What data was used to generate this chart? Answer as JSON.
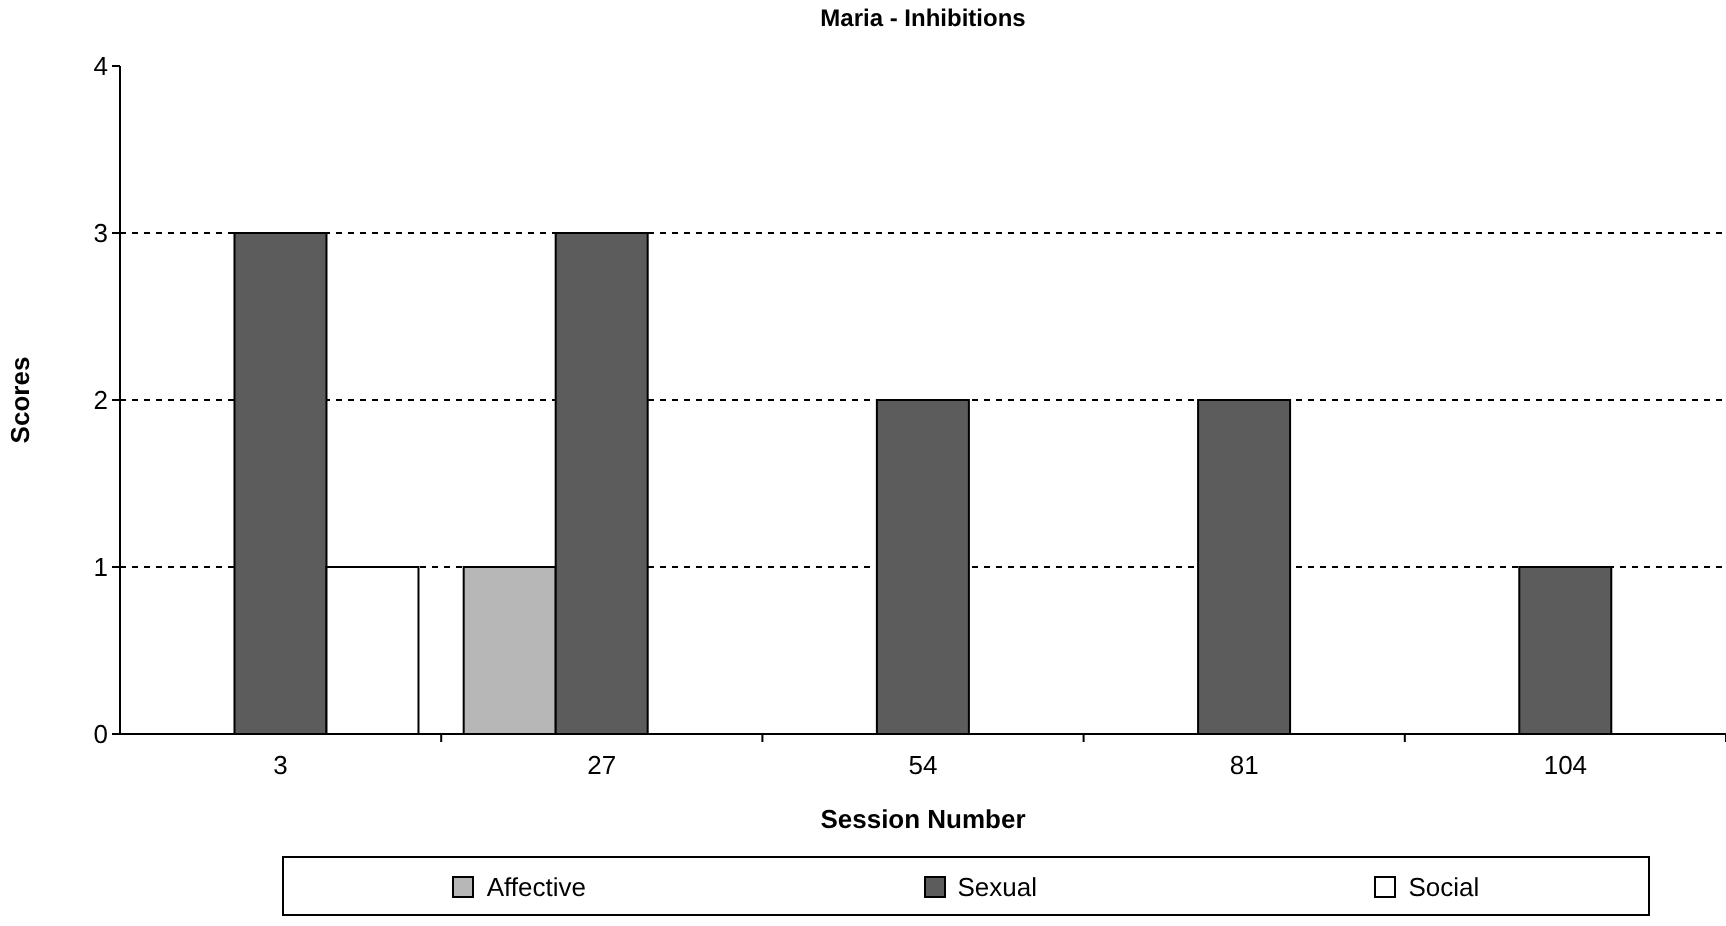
{
  "chart_data": {
    "type": "bar",
    "title": "Maria - Inhibitions",
    "xlabel": "Session Number",
    "ylabel": "Scores",
    "categories": [
      "3",
      "27",
      "54",
      "81",
      "104"
    ],
    "series": [
      {
        "name": "Affective",
        "color": "#b7b7b7",
        "values": [
          0,
          1,
          0,
          0,
          0
        ]
      },
      {
        "name": "Sexual",
        "color": "#5c5c5c",
        "values": [
          3,
          3,
          2,
          2,
          1
        ]
      },
      {
        "name": "Social",
        "color": "#ffffff",
        "values": [
          1,
          0,
          0,
          0,
          0
        ]
      }
    ],
    "ylim": [
      0,
      4
    ],
    "yticks": [
      0,
      1,
      2,
      3,
      4
    ],
    "grid": "y",
    "legend": "bottom"
  }
}
